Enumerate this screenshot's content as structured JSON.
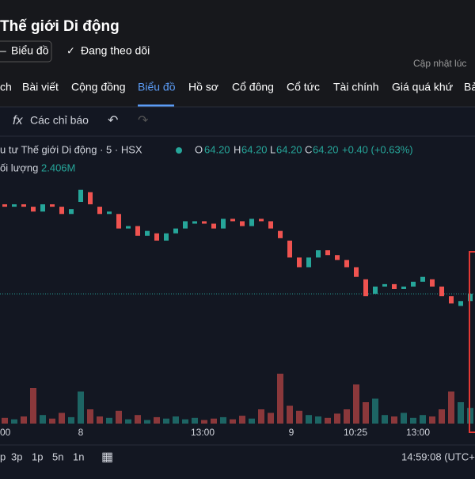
{
  "header": {
    "title": "Thế giới Di động",
    "chart_button": "Biểu đồ",
    "follow": "Đang theo dõi",
    "updated": "Cập nhật lúc"
  },
  "tabs": [
    "ch",
    "Bài viết",
    "Cộng đồng",
    "Biểu đồ",
    "Hồ sơ",
    "Cổ đông",
    "Cổ tức",
    "Tài chính",
    "Giá quá khứ",
    "Bả"
  ],
  "toolbar": {
    "indicators": "Các chỉ báo"
  },
  "legend": {
    "symbol": "u tư Thế giới Di động · 5 · HSX",
    "o_label": "O",
    "o": "64.20",
    "h_label": "H",
    "h": "64.20",
    "l_label": "L",
    "l": "64.20",
    "c_label": "C",
    "c": "64.20",
    "change": "+0.40 (+0.63%)",
    "volume_label": "ối lượng",
    "volume": "2.406M"
  },
  "chart_data": {
    "type": "candlestick",
    "open": [
      66.05,
      66.0,
      66.05,
      66.0,
      65.9,
      66.05,
      66.0,
      65.85,
      66.1,
      66.3,
      66.0,
      65.85,
      65.85,
      65.55,
      65.6,
      65.4,
      65.45,
      65.3,
      65.45,
      65.55,
      65.65,
      65.7,
      65.65,
      65.55,
      65.75,
      65.7,
      65.6,
      65.75,
      65.7,
      65.5,
      65.3,
      64.95,
      64.75,
      64.95,
      65.1,
      65.0,
      64.9,
      64.75,
      64.5,
      64.2,
      64.35,
      64.4,
      64.3,
      64.35,
      64.45,
      64.5,
      64.35,
      64.15,
      63.95,
      64.05
    ],
    "close": [
      66.0,
      66.05,
      66.0,
      65.9,
      66.05,
      66.0,
      65.85,
      65.95,
      66.35,
      66.05,
      65.85,
      65.9,
      65.55,
      65.6,
      65.4,
      65.5,
      65.3,
      65.45,
      65.55,
      65.7,
      65.7,
      65.65,
      65.55,
      65.75,
      65.7,
      65.6,
      65.75,
      65.7,
      65.55,
      65.35,
      64.95,
      64.75,
      64.95,
      65.1,
      65.0,
      64.9,
      64.75,
      64.55,
      64.15,
      64.35,
      64.4,
      64.3,
      64.35,
      64.45,
      64.55,
      64.35,
      64.15,
      64.0,
      64.05,
      64.2
    ],
    "volume": [
      0.08,
      0.06,
      0.1,
      0.5,
      0.12,
      0.07,
      0.15,
      0.09,
      0.45,
      0.2,
      0.1,
      0.08,
      0.18,
      0.06,
      0.12,
      0.05,
      0.09,
      0.07,
      0.1,
      0.06,
      0.08,
      0.05,
      0.07,
      0.09,
      0.06,
      0.11,
      0.07,
      0.2,
      0.15,
      0.7,
      0.25,
      0.18,
      0.12,
      0.1,
      0.08,
      0.14,
      0.2,
      0.55,
      0.3,
      0.35,
      0.12,
      0.1,
      0.15,
      0.08,
      0.12,
      0.1,
      0.2,
      0.45,
      0.3,
      0.22
    ],
    "last_price": 64.2,
    "ylim": [
      63.4,
      67.0
    ],
    "vlim": [
      0,
      1.0
    ],
    "x_labels": [
      "00",
      "8",
      "13:00",
      "9",
      "10:25",
      "13:00"
    ],
    "up_color": "#26a69a",
    "down_color": "#ef5350"
  },
  "footer": {
    "ranges": [
      "p",
      "3p",
      "1p",
      "5n",
      "1n"
    ],
    "time": "14:59:08 (UTC+"
  }
}
